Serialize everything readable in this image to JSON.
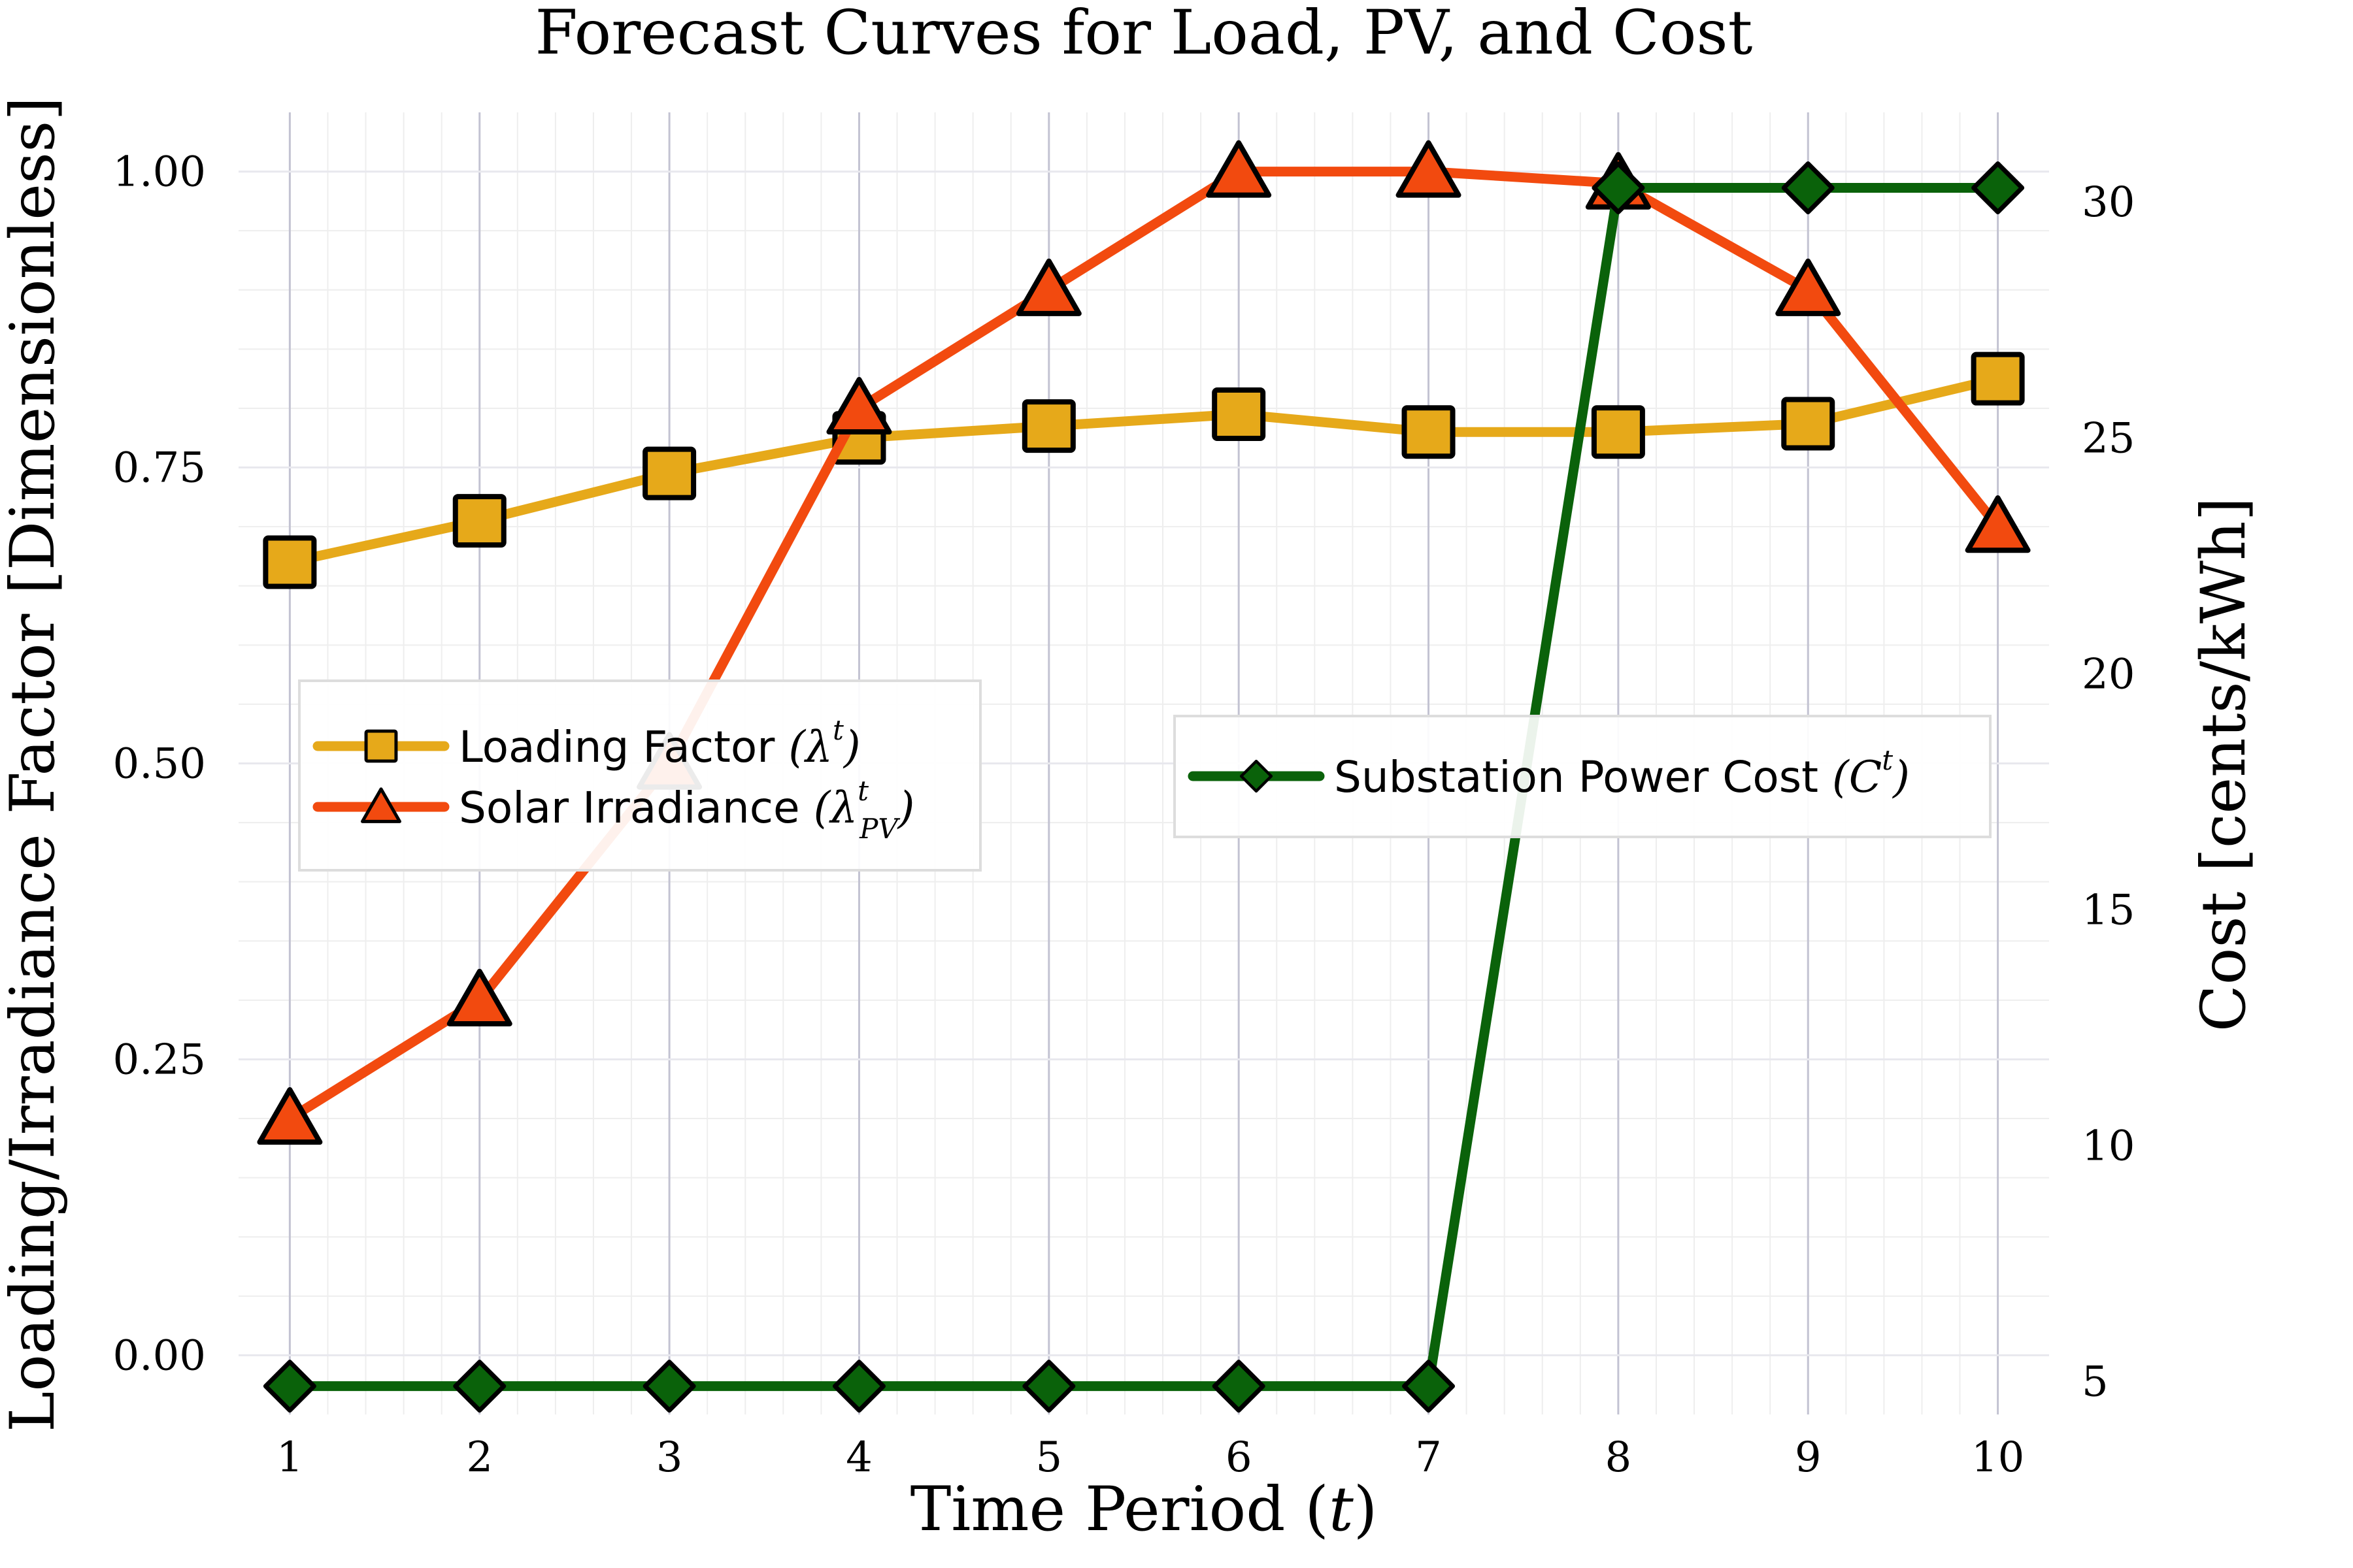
{
  "chart_data": {
    "type": "line",
    "title": "Forecast Curves for Load, PV, and Cost",
    "xlabel": "Time Period (t)",
    "ylabel": "Loading/Irradiance Factor [Dimensionless]",
    "y2label": "Cost [cents/kWh]",
    "x": [
      1,
      2,
      3,
      4,
      5,
      6,
      7,
      8,
      9,
      10
    ],
    "x_ticks": [
      "1",
      "2",
      "3",
      "4",
      "5",
      "6",
      "7",
      "8",
      "9",
      "10"
    ],
    "y_ticks": [
      "0.00",
      "0.25",
      "0.50",
      "0.75",
      "1.00"
    ],
    "y2_ticks": [
      "5",
      "10",
      "15",
      "20",
      "25",
      "30"
    ],
    "xlim": [
      0.73,
      10.27
    ],
    "ylim": [
      -0.05,
      1.05
    ],
    "y2lim": [
      4.3,
      31.9
    ],
    "grid": true,
    "series": [
      {
        "name": "Loading Factor (λᵗ)",
        "axis": "left",
        "marker": "square",
        "color": "#E6A91A",
        "values": [
          0.67,
          0.705,
          0.745,
          0.775,
          0.785,
          0.795,
          0.78,
          0.78,
          0.787,
          0.825
        ]
      },
      {
        "name": "Solar Irradiance (λᵗₚᵥ)",
        "axis": "left",
        "marker": "triangle",
        "color": "#F24A0F",
        "values": [
          0.2,
          0.3,
          0.5,
          0.8,
          0.9,
          1.0,
          1.0,
          0.99,
          0.9,
          0.7
        ]
      },
      {
        "name": "Substation Power Cost (Cᵗ)",
        "axis": "right",
        "marker": "diamond",
        "color": "#0A620A",
        "values": [
          4.9,
          4.9,
          4.9,
          4.9,
          4.9,
          4.9,
          4.9,
          30.3,
          30.3,
          30.3
        ]
      }
    ],
    "legend_left": {
      "placement": "center-left",
      "entries": [
        {
          "text": "Loading Factor",
          "math": "(λ",
          "sup": "t",
          "close": ")"
        },
        {
          "text": "Solar Irradiance",
          "math": "(λ",
          "sup": "t",
          "sub": "PV",
          "close": ")"
        }
      ]
    },
    "legend_right": {
      "placement": "center-right",
      "entries": [
        {
          "text": "Substation Power Cost",
          "math": "(C",
          "sup": "t",
          "close": ")"
        }
      ]
    }
  }
}
